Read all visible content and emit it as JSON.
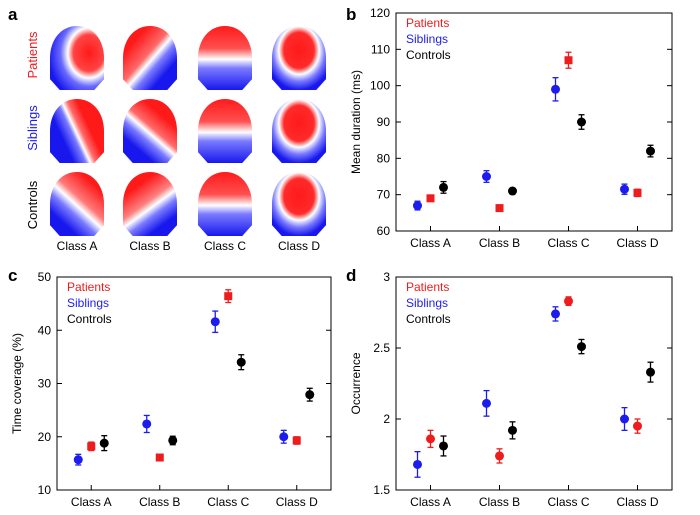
{
  "panel_letters": [
    "a",
    "b",
    "c",
    "d"
  ],
  "colors": {
    "patients": "#ee1c1c",
    "siblings": "#1c1cee",
    "controls": "#000000"
  },
  "maps": {
    "row_labels": [
      "Patients",
      "Siblings",
      "Controls"
    ],
    "row_colors": [
      "#ee1c1c",
      "#1c1cee",
      "#000000"
    ],
    "class_labels": [
      "Class A",
      "Class B",
      "Class C",
      "Class D"
    ]
  },
  "chart_data": [
    {
      "panel": "b",
      "type": "scatter",
      "ylabel": "Mean duration (ms)",
      "xlabel": "",
      "categories": [
        "Class A",
        "Class B",
        "Class C",
        "Class D"
      ],
      "ylim": [
        60,
        120
      ],
      "yticks": [
        60,
        70,
        80,
        90,
        100,
        110,
        120
      ],
      "legend": [
        "Patients",
        "Siblings",
        "Controls"
      ],
      "legend_position": "top-left",
      "series": [
        {
          "name": "Siblings",
          "color": "#1c1cee",
          "marker": "circle",
          "values": [
            67,
            75,
            99,
            71.5
          ],
          "err": [
            1.2,
            1.6,
            3.2,
            1.4
          ]
        },
        {
          "name": "Patients",
          "color": "#ee1c1c",
          "marker": "square",
          "values": [
            69,
            66.3,
            107,
            70.5
          ],
          "err": [
            0.8,
            0.6,
            2.2,
            1.0
          ]
        },
        {
          "name": "Controls",
          "color": "#000000",
          "marker": "circle",
          "values": [
            72,
            71,
            90,
            82
          ],
          "err": [
            1.6,
            0.8,
            2.0,
            1.6
          ]
        }
      ]
    },
    {
      "panel": "c",
      "type": "scatter",
      "ylabel": "Time coverage (%)",
      "xlabel": "",
      "categories": [
        "Class A",
        "Class B",
        "Class C",
        "Class D"
      ],
      "ylim": [
        10,
        50
      ],
      "yticks": [
        10,
        20,
        30,
        40,
        50
      ],
      "legend": [
        "Patients",
        "Siblings",
        "Controls"
      ],
      "legend_position": "top-left",
      "series": [
        {
          "name": "Siblings",
          "color": "#1c1cee",
          "marker": "circle",
          "values": [
            15.7,
            22.4,
            41.6,
            20.0
          ],
          "err": [
            1.0,
            1.6,
            2.0,
            1.2
          ]
        },
        {
          "name": "Patients",
          "color": "#ee1c1c",
          "marker": "square",
          "values": [
            18.2,
            16.1,
            46.4,
            19.3
          ],
          "err": [
            0.8,
            0.6,
            1.2,
            0.7
          ]
        },
        {
          "name": "Controls",
          "color": "#000000",
          "marker": "circle",
          "values": [
            18.8,
            19.3,
            34.0,
            27.9
          ],
          "err": [
            1.4,
            0.8,
            1.4,
            1.2
          ]
        }
      ]
    },
    {
      "panel": "d",
      "type": "scatter",
      "ylabel": "Occurrence",
      "xlabel": "",
      "categories": [
        "Class A",
        "Class B",
        "Class C",
        "Class D"
      ],
      "ylim": [
        1.5,
        3
      ],
      "yticks": [
        1.5,
        2,
        2.5,
        3
      ],
      "legend": [
        "Patients",
        "Siblings",
        "Controls"
      ],
      "legend_position": "top-left",
      "series": [
        {
          "name": "Siblings",
          "color": "#1c1cee",
          "marker": "circle",
          "values": [
            1.68,
            2.11,
            2.74,
            2.0
          ],
          "err": [
            0.09,
            0.09,
            0.05,
            0.08
          ]
        },
        {
          "name": "Patients",
          "color": "#ee1c1c",
          "marker": "circle",
          "values": [
            1.86,
            1.74,
            2.83,
            1.95
          ],
          "err": [
            0.06,
            0.05,
            0.03,
            0.05
          ]
        },
        {
          "name": "Controls",
          "color": "#000000",
          "marker": "circle",
          "values": [
            1.81,
            1.92,
            2.51,
            2.33
          ],
          "err": [
            0.07,
            0.06,
            0.05,
            0.07
          ]
        }
      ]
    }
  ]
}
